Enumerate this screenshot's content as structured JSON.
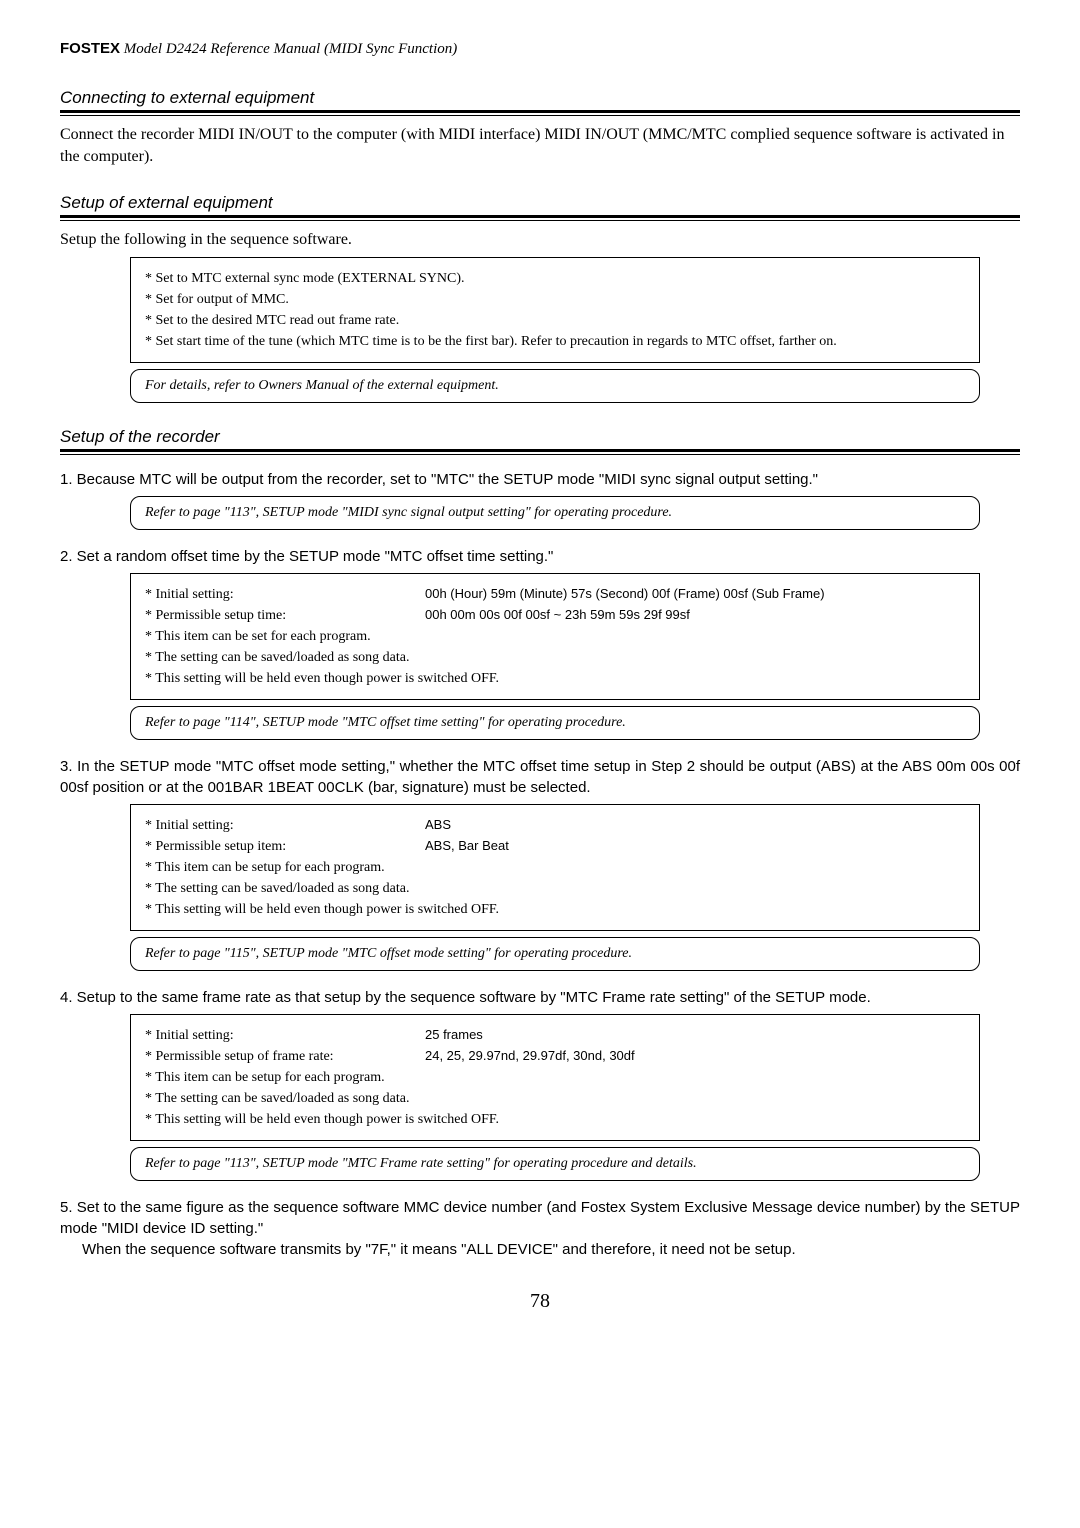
{
  "header": {
    "brand": "FOSTEX",
    "title": "Model D2424  Reference Manual (MIDI Sync Function)"
  },
  "section1": {
    "title": "Connecting to external equipment",
    "body": "Connect the recorder MIDI IN/OUT to the computer (with MIDI interface) MIDI IN/OUT (MMC/MTC complied sequence software is activated in the computer)."
  },
  "section2": {
    "title": "Setup of external equipment",
    "body": "Setup the following in the sequence software.",
    "box_lines": [
      "* Set to MTC external sync mode (EXTERNAL SYNC).",
      "* Set for output of MMC.",
      "* Set to the desired MTC read out frame rate.",
      "* Set start time of the tune (which MTC time is to be the first bar).  Refer to precaution in regards to MTC offset, farther on."
    ],
    "ref": "For details, refer to Owners Manual of the external equipment."
  },
  "section3": {
    "title": "Setup of the recorder",
    "step1": {
      "text": "1. Because MTC will be output from the recorder, set to \"MTC\" the SETUP mode \"MIDI sync  signal output setting.\"",
      "ref": "Refer to page \"113\", SETUP mode \"MIDI sync signal output setting\" for operating procedure."
    },
    "step2": {
      "text": "2. Set a random offset time by the SETUP mode \"MTC offset time setting.\"",
      "initial_label": "* Initial setting:",
      "initial_value": "00h (Hour) 59m (Minute) 57s (Second) 00f (Frame) 00sf (Sub Frame)",
      "perm_label": "* Permissible setup time:",
      "perm_value": "00h 00m 00s 00f 00sf ~ 23h 59m 59s 29f 99sf",
      "line3": "* This item can be set for each program.",
      "line4": "* The setting can be saved/loaded as song data.",
      "line5": "* This setting will be held even though power is switched OFF.",
      "ref": "Refer to page \"114\", SETUP mode \"MTC offset time setting\" for operating procedure."
    },
    "step3": {
      "text": "3. In the SETUP mode \"MTC offset mode setting,\" whether the MTC offset time setup in Step 2 should be output (ABS) at the ABS 00m 00s 00f 00sf position or at the 001BAR 1BEAT 00CLK (bar, signature) must be selected.",
      "initial_label": "* Initial setting:",
      "initial_value": "ABS",
      "perm_label": "* Permissible setup item:",
      "perm_value": "ABS, Bar Beat",
      "line3": "* This item can be setup for each program.",
      "line4": "* The setting can be saved/loaded as song data.",
      "line5": "* This setting will be held even though power is switched OFF.",
      "ref": "Refer to page \"115\", SETUP mode \"MTC offset mode setting\" for operating procedure."
    },
    "step4": {
      "text": "4. Setup to the same frame rate as that setup by the sequence software by \"MTC Frame rate setting\" of the SETUP mode.",
      "initial_label": "* Initial setting:",
      "initial_value": "25 frames",
      "perm_label": "* Permissible setup of frame rate:",
      "perm_value": "24, 25, 29.97nd, 29.97df, 30nd, 30df",
      "line3": "* This item can be setup for each program.",
      "line4": "* The setting can be saved/loaded as song data.",
      "line5": "* This setting will be held even though power is switched OFF.",
      "ref": "Refer to page \"113\", SETUP mode \"MTC Frame rate setting\" for operating procedure and details."
    },
    "step5": {
      "text1": "5. Set to the same figure as the sequence software MMC device number (and Fostex System Exclusive Message device number) by the SETUP mode \"MIDI device ID setting.\"",
      "text2": "When the sequence software transmits by \"7F,\" it means \"ALL DEVICE\" and therefore, it need not be setup."
    }
  },
  "page_number": "78"
}
